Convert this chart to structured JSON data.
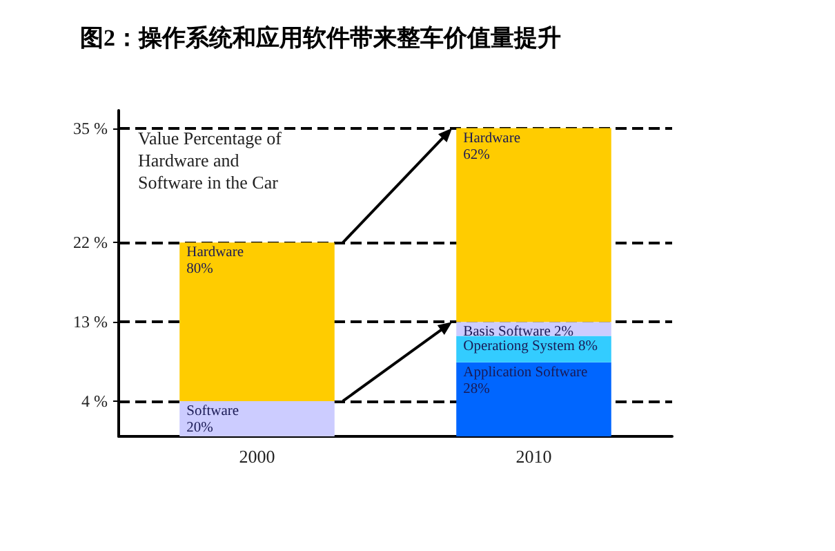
{
  "chart_data": {
    "type": "bar",
    "title": "图2：操作系统和应用软件带来整车价值量提升",
    "stacked": true,
    "categories": [
      "2000",
      "2010"
    ],
    "series": [
      {
        "color": "#ccccff",
        "values": [
          4,
          null
        ]
      },
      {
        "color": "#0066ff",
        "values": [
          null,
          8.4
        ]
      },
      {
        "color": "#33ccff",
        "values": [
          null,
          3
        ]
      },
      {
        "color": "#ccccff",
        "values": [
          null,
          1.6
        ]
      },
      {
        "color": "#ffcc00",
        "values": [
          18,
          22
        ]
      }
    ],
    "ylim": [
      0,
      37
    ],
    "yticks": [
      {
        "value": 4,
        "label": "4 %"
      },
      {
        "value": 13,
        "label": "13 %"
      },
      {
        "value": 22,
        "label": "22 %"
      },
      {
        "value": 35,
        "label": "35 %"
      }
    ],
    "ref_lines": [
      {
        "axis": "y",
        "value": 4,
        "line_style": "dashed",
        "color": "#000000"
      },
      {
        "axis": "y",
        "value": 13,
        "line_style": "dashed",
        "color": "#000000"
      },
      {
        "axis": "y",
        "value": 22,
        "line_style": "dashed",
        "color": "#000000"
      },
      {
        "axis": "y",
        "value": 35,
        "line_style": "dashed",
        "color": "#000000"
      }
    ],
    "annotations": [
      "Value Percentage of Hardware and Software in the Car",
      {
        "text": "Hardware\n80%",
        "x": "2000",
        "y": 22
      },
      {
        "text": "Software\n20%",
        "x": "2000",
        "y": 4
      },
      {
        "text": "Hardware\n62%",
        "x": "2010",
        "y": 35
      },
      {
        "text": "Basis Software 2%",
        "x": "2010",
        "y": 13
      },
      {
        "text": "Operationg System 8%",
        "x": "2010",
        "y": 11.4
      },
      {
        "text": "Application Software\n28%",
        "x": "2010",
        "y": 8.4
      }
    ],
    "grid": false
  }
}
